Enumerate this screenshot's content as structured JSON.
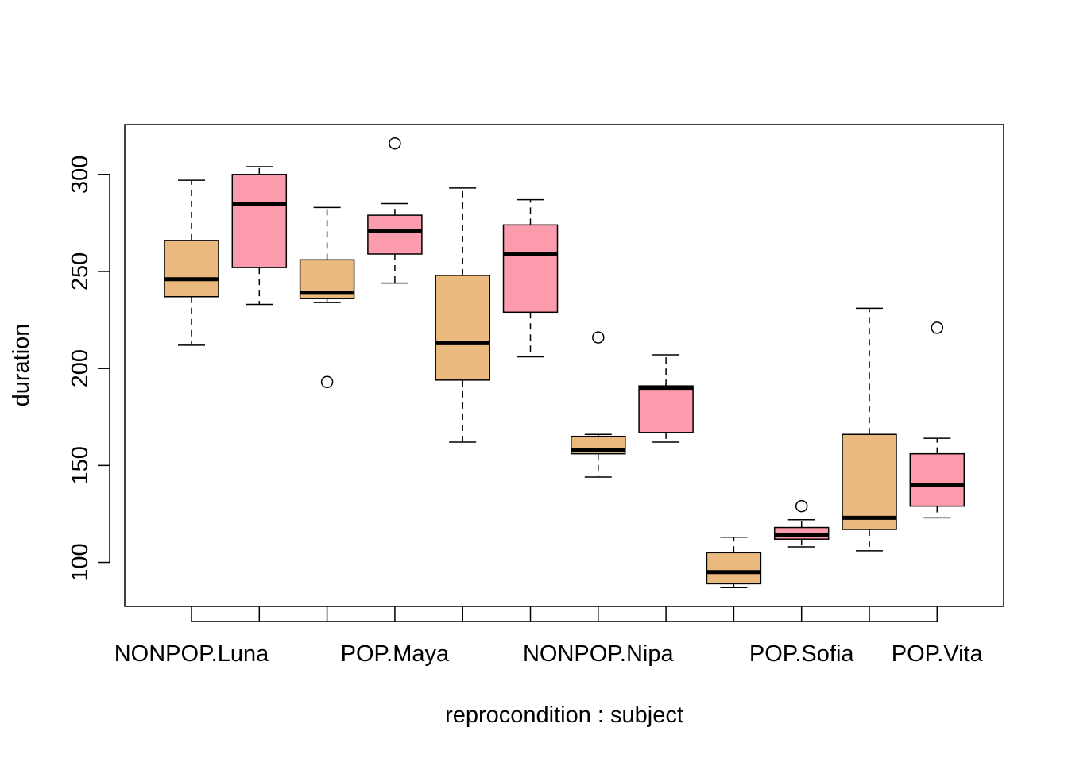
{
  "chart_data": {
    "type": "boxplot",
    "title": "",
    "xlabel": "reprocondition : subject",
    "ylabel": "duration",
    "ylim": [
      77.3,
      325.7
    ],
    "yticks": [
      100,
      150,
      200,
      250,
      300
    ],
    "ytick_labels": [
      "100",
      "150",
      "200",
      "250",
      "300"
    ],
    "xtick_labels": [
      "NONPOP.Luna",
      "POP.Maya",
      "NONPOP.Nipa",
      "POP.Sofia",
      "POP.Vita"
    ],
    "xtick_label_positions": [
      1,
      4,
      7,
      10,
      12
    ],
    "n_boxes": 12,
    "grid": false,
    "colors": {
      "NONPOP": "#EAB97E",
      "POP": "#FC9BAB"
    },
    "boxes": [
      {
        "group": "NONPOP",
        "whisker_low": 212,
        "q1": 237,
        "median": 246,
        "q3": 266,
        "whisker_high": 297,
        "outliers": []
      },
      {
        "group": "POP",
        "whisker_low": 233,
        "q1": 252,
        "median": 285,
        "q3": 300,
        "whisker_high": 304,
        "outliers": []
      },
      {
        "group": "NONPOP",
        "whisker_low": 234,
        "q1": 236,
        "median": 239,
        "q3": 256,
        "whisker_high": 283,
        "outliers": [
          193
        ]
      },
      {
        "group": "POP",
        "whisker_low": 244,
        "q1": 259,
        "median": 271,
        "q3": 279,
        "whisker_high": 285,
        "outliers": [
          316
        ]
      },
      {
        "group": "NONPOP",
        "whisker_low": 162,
        "q1": 194,
        "median": 213,
        "q3": 248,
        "whisker_high": 293,
        "outliers": []
      },
      {
        "group": "POP",
        "whisker_low": 206,
        "q1": 229,
        "median": 259,
        "q3": 274,
        "whisker_high": 287,
        "outliers": []
      },
      {
        "group": "NONPOP",
        "whisker_low": 144,
        "q1": 156,
        "median": 158,
        "q3": 165,
        "whisker_high": 166,
        "outliers": [
          216
        ]
      },
      {
        "group": "POP",
        "whisker_low": 162,
        "q1": 167,
        "median": 190,
        "q3": 191,
        "whisker_high": 207,
        "outliers": []
      },
      {
        "group": "NONPOP",
        "whisker_low": 87,
        "q1": 89,
        "median": 95,
        "q3": 105,
        "whisker_high": 113,
        "outliers": []
      },
      {
        "group": "POP",
        "whisker_low": 108,
        "q1": 112,
        "median": 114,
        "q3": 118,
        "whisker_high": 122,
        "outliers": [
          129
        ]
      },
      {
        "group": "NONPOP",
        "whisker_low": 106,
        "q1": 117,
        "median": 123,
        "q3": 166,
        "whisker_high": 231,
        "outliers": []
      },
      {
        "group": "POP",
        "whisker_low": 123,
        "q1": 129,
        "median": 140,
        "q3": 156,
        "whisker_high": 164,
        "outliers": [
          221
        ]
      }
    ]
  }
}
